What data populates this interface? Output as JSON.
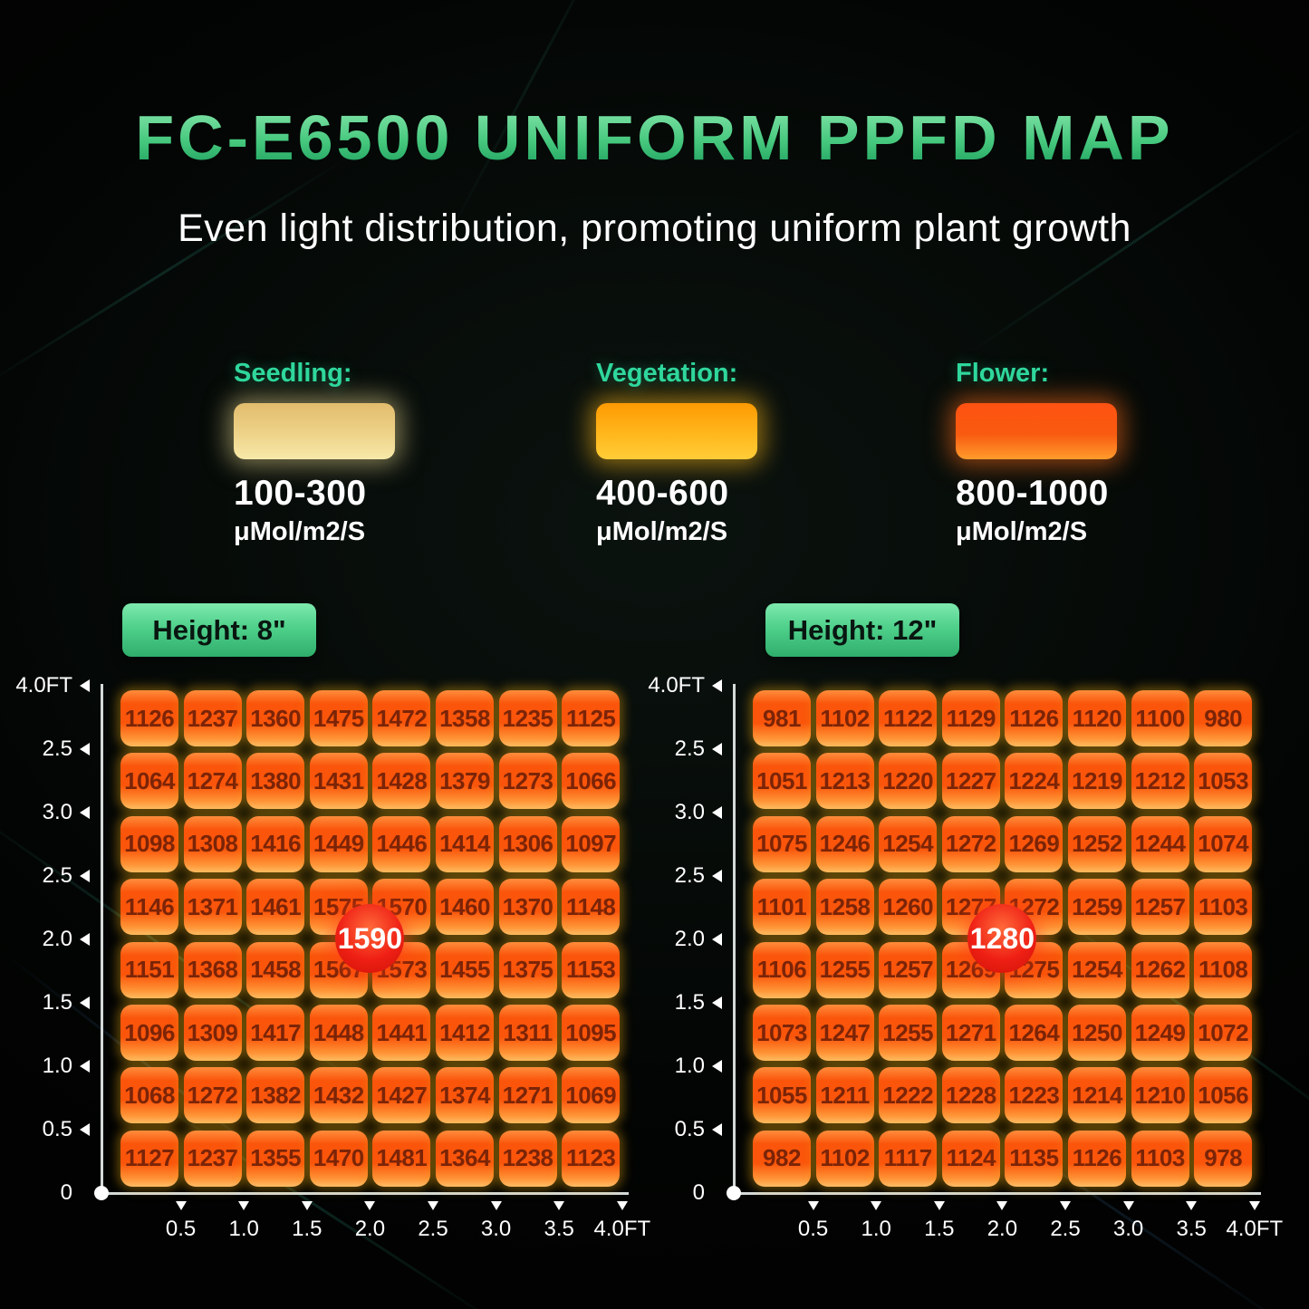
{
  "title": "FC-E6500 UNIFORM PPFD MAP",
  "subtitle": "Even light distribution, promoting uniform plant growth",
  "legend": {
    "items": [
      {
        "label": "Seedling:",
        "range": "100-300",
        "unit": "μMol/m2/S",
        "swatch": [
          "#e2bc6d",
          "#eed389",
          "#f7e9a9"
        ]
      },
      {
        "label": "Vegetation:",
        "range": "400-600",
        "unit": "μMol/m2/S",
        "swatch": [
          "#ff9a03",
          "#ffb71c",
          "#ffcd38"
        ]
      },
      {
        "label": "Flower:",
        "range": "800-1000",
        "unit": "μMol/m2/S",
        "swatch": [
          "#ff5212",
          "#f85a10",
          "#ff9c2c"
        ]
      }
    ]
  },
  "chart_data": [
    {
      "type": "heatmap",
      "badge": "Height: 8\"",
      "peak": "1590",
      "xlabel": "feet",
      "ylabel": "feet",
      "y_ticks": [
        "4.0FT",
        "2.5",
        "3.0",
        "2.5",
        "2.0",
        "1.5",
        "1.0",
        "0.5",
        "0"
      ],
      "x_ticks": [
        "0.5",
        "1.0",
        "1.5",
        "2.0",
        "2.5",
        "3.0",
        "3.5",
        "4.0FT"
      ],
      "values": [
        [
          1126,
          1237,
          1360,
          1475,
          1472,
          1358,
          1235,
          1125
        ],
        [
          1064,
          1274,
          1380,
          1431,
          1428,
          1379,
          1273,
          1066
        ],
        [
          1098,
          1308,
          1416,
          1449,
          1446,
          1414,
          1306,
          1097
        ],
        [
          1146,
          1371,
          1461,
          1575,
          1570,
          1460,
          1370,
          1148
        ],
        [
          1151,
          1368,
          1458,
          1567,
          1573,
          1455,
          1375,
          1153
        ],
        [
          1096,
          1309,
          1417,
          1448,
          1441,
          1412,
          1311,
          1095
        ],
        [
          1068,
          1272,
          1382,
          1432,
          1427,
          1374,
          1271,
          1069
        ],
        [
          1127,
          1237,
          1355,
          1470,
          1481,
          1364,
          1238,
          1123
        ]
      ]
    },
    {
      "type": "heatmap",
      "badge": "Height: 12\"",
      "peak": "1280",
      "xlabel": "feet",
      "ylabel": "feet",
      "y_ticks": [
        "4.0FT",
        "2.5",
        "3.0",
        "2.5",
        "2.0",
        "1.5",
        "1.0",
        "0.5",
        "0"
      ],
      "x_ticks": [
        "0.5",
        "1.0",
        "1.5",
        "2.0",
        "2.5",
        "3.0",
        "3.5",
        "4.0FT"
      ],
      "values": [
        [
          981,
          1102,
          1122,
          1129,
          1126,
          1120,
          1100,
          980
        ],
        [
          1051,
          1213,
          1220,
          1227,
          1224,
          1219,
          1212,
          1053
        ],
        [
          1075,
          1246,
          1254,
          1272,
          1269,
          1252,
          1244,
          1074
        ],
        [
          1101,
          1258,
          1260,
          1277,
          1272,
          1259,
          1257,
          1103
        ],
        [
          1106,
          1255,
          1257,
          1269,
          1275,
          1254,
          1262,
          1108
        ],
        [
          1073,
          1247,
          1255,
          1271,
          1264,
          1250,
          1249,
          1072
        ],
        [
          1055,
          1211,
          1222,
          1228,
          1223,
          1214,
          1210,
          1056
        ],
        [
          982,
          1102,
          1117,
          1124,
          1135,
          1126,
          1103,
          978
        ]
      ]
    }
  ],
  "colors": {
    "accent_green": "#2fd79c",
    "title_top": "#8ee9b1",
    "title_mid": "#46c87e",
    "title_bottom": "#17995a",
    "hb_top": "#7ee9ae",
    "hb_bottom": "#2fae6b",
    "tile_top": "#ff8d3c",
    "tile_mid": "#fa550b",
    "tile_low": "#ff9436",
    "tile_bottom": "#ffbd66",
    "tile_text": "#7b2407",
    "peak_hi": "#ff6a3a",
    "peak_mid": "#ef2015",
    "peak_lo": "#cf1106",
    "axis_color": "#d4dad8"
  }
}
